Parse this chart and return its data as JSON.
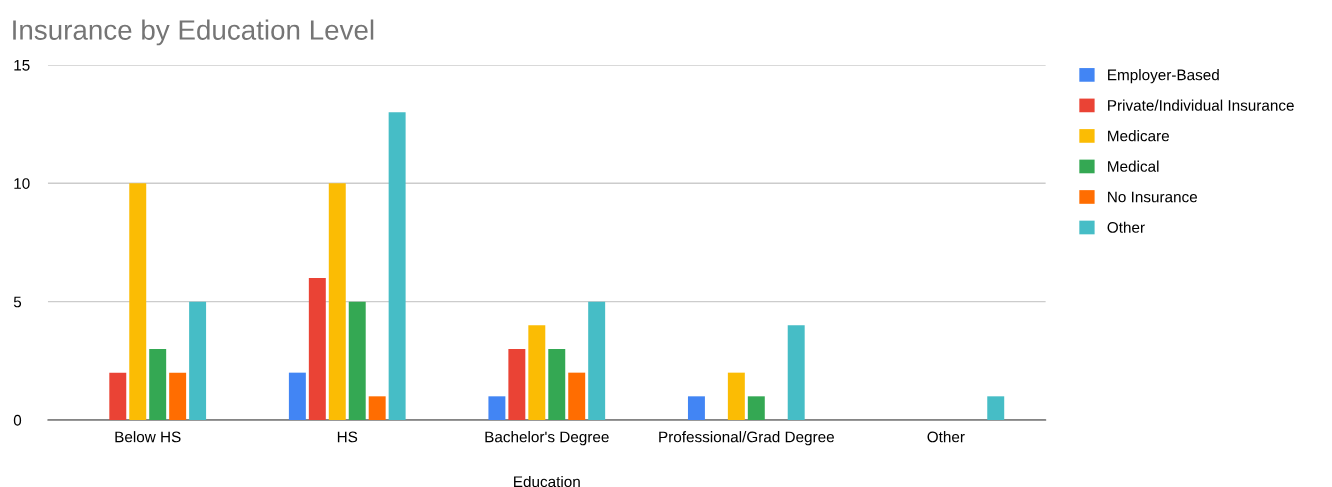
{
  "chart_data": {
    "type": "bar",
    "title": "Insurance by Education Level",
    "xlabel": "Education",
    "categories": [
      "Below HS",
      "HS",
      "Bachelor's Degree",
      "Professional/Grad Degree",
      "Other"
    ],
    "series": [
      {
        "name": "Employer-Based",
        "color": "#4285f4",
        "values": [
          0,
          2,
          1,
          1,
          0
        ]
      },
      {
        "name": "Private/Individual Insurance",
        "color": "#ea4335",
        "values": [
          2,
          6,
          3,
          0,
          0
        ]
      },
      {
        "name": "Medicare",
        "color": "#fbbc04",
        "values": [
          10,
          10,
          4,
          2,
          0
        ]
      },
      {
        "name": "Medical",
        "color": "#34a853",
        "values": [
          3,
          5,
          3,
          1,
          0
        ]
      },
      {
        "name": "No Insurance",
        "color": "#ff6d01",
        "values": [
          2,
          1,
          2,
          0,
          0
        ]
      },
      {
        "name": "Other",
        "color": "#46bdc6",
        "values": [
          5,
          13,
          5,
          4,
          1
        ]
      }
    ],
    "ylim": [
      0,
      15
    ],
    "yticks": [
      0,
      5,
      10,
      15
    ],
    "grid": "y",
    "legend": "right"
  }
}
